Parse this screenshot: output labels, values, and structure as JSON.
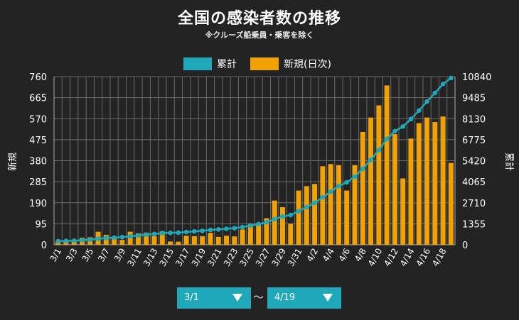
{
  "title": "全国の感染者数の推移",
  "subtitle": "※クルーズ船乗員・乗客を除く",
  "date_range": {
    "from": "3/1",
    "to": "4/19",
    "separator": "〜"
  },
  "colors": {
    "cumulative": "#1fa8b8",
    "new": "#f2a200",
    "background": "#232323",
    "grid": "#6a6a6a"
  },
  "chart_data": {
    "type": "bar",
    "legend": [
      "累計",
      "新規(日次)"
    ],
    "legend_position": "top-center",
    "grid": true,
    "categories": [
      "3/1",
      "3/2",
      "3/3",
      "3/4",
      "3/5",
      "3/6",
      "3/7",
      "3/8",
      "3/9",
      "3/10",
      "3/11",
      "3/12",
      "3/13",
      "3/14",
      "3/15",
      "3/16",
      "3/17",
      "3/18",
      "3/19",
      "3/20",
      "3/21",
      "3/22",
      "3/23",
      "3/24",
      "3/25",
      "3/26",
      "3/27",
      "3/28",
      "3/29",
      "3/30",
      "3/31",
      "4/1",
      "4/2",
      "4/3",
      "4/4",
      "4/5",
      "4/6",
      "4/7",
      "4/8",
      "4/9",
      "4/10",
      "4/11",
      "4/12",
      "4/13",
      "4/14",
      "4/15",
      "4/16",
      "4/17",
      "4/18",
      "4/19"
    ],
    "tick_labels": [
      "3/1",
      "3/3",
      "3/5",
      "3/7",
      "3/9",
      "3/11",
      "3/13",
      "3/15",
      "3/17",
      "3/19",
      "3/21",
      "3/23",
      "3/25",
      "3/27",
      "3/29",
      "3/31",
      "4/2",
      "4/4",
      "4/6",
      "4/8",
      "4/10",
      "4/12",
      "4/14",
      "4/16",
      "4/18"
    ],
    "y_left": {
      "label": "新規",
      "ticks": [
        0,
        95,
        190,
        285,
        380,
        475,
        570,
        665,
        760
      ],
      "ylim": [
        0,
        760
      ]
    },
    "y_right": {
      "label": "累計",
      "ticks": [
        0,
        1355,
        2710,
        4065,
        5420,
        6775,
        8130,
        9485,
        10840
      ],
      "ylim": [
        0,
        10840
      ]
    },
    "series": [
      {
        "name": "新規(日次)",
        "type": "bar",
        "axis": "left",
        "values": [
          14,
          19,
          15,
          32,
          34,
          59,
          45,
          33,
          22,
          59,
          52,
          55,
          39,
          61,
          15,
          14,
          41,
          39,
          39,
          54,
          36,
          41,
          38,
          69,
          95,
          98,
          120,
          200,
          170,
          95,
          245,
          265,
          275,
          355,
          365,
          360,
          245,
          360,
          510,
          575,
          630,
          720,
          500,
          300,
          480,
          550,
          575,
          555,
          580,
          370
        ]
      },
      {
        "name": "累計",
        "type": "line",
        "axis": "right",
        "values": [
          230,
          249,
          264,
          296,
          330,
          389,
          434,
          467,
          489,
          548,
          600,
          655,
          694,
          755,
          770,
          784,
          825,
          864,
          903,
          957,
          993,
          1034,
          1072,
          1141,
          1236,
          1334,
          1454,
          1654,
          1824,
          1919,
          2164,
          2429,
          2704,
          3059,
          3424,
          3784,
          4029,
          4389,
          4899,
          5474,
          6104,
          6824,
          7324,
          7624,
          8104,
          8654,
          9229,
          9784,
          10364,
          10751
        ]
      }
    ]
  }
}
